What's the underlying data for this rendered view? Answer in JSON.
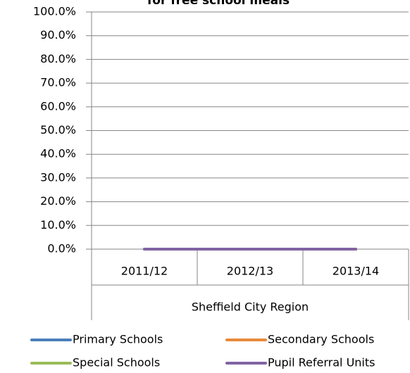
{
  "chart_data": {
    "type": "line",
    "title": "for free school meals",
    "categories": [
      "2011/12",
      "2012/13",
      "2013/14"
    ],
    "category_group": "Sheffield City Region",
    "series": [
      {
        "name": "Primary Schools",
        "color": "#4a7ebb",
        "values": [
          0,
          0,
          0
        ]
      },
      {
        "name": "Secondary Schools",
        "color": "#e8893a",
        "values": [
          0,
          0,
          0
        ]
      },
      {
        "name": "Special Schools",
        "color": "#9bbb59",
        "values": [
          0,
          0,
          0
        ]
      },
      {
        "name": "Pupil Referral Units",
        "color": "#8064a2",
        "values": [
          0,
          0,
          0
        ]
      }
    ],
    "ylim": [
      0,
      100
    ],
    "yticks": [
      {
        "value": 0,
        "label": "0.0%"
      },
      {
        "value": 10,
        "label": "10.0%"
      },
      {
        "value": 20,
        "label": "20.0%"
      },
      {
        "value": 30,
        "label": "30.0%"
      },
      {
        "value": 40,
        "label": "40.0%"
      },
      {
        "value": 50,
        "label": "50.0%"
      },
      {
        "value": 60,
        "label": "60.0%"
      },
      {
        "value": 70,
        "label": "70.0%"
      },
      {
        "value": 80,
        "label": "80.0%"
      },
      {
        "value": 90,
        "label": "90.0%"
      },
      {
        "value": 100,
        "label": "100.0%"
      }
    ],
    "grid": true,
    "legend": "bottom"
  }
}
